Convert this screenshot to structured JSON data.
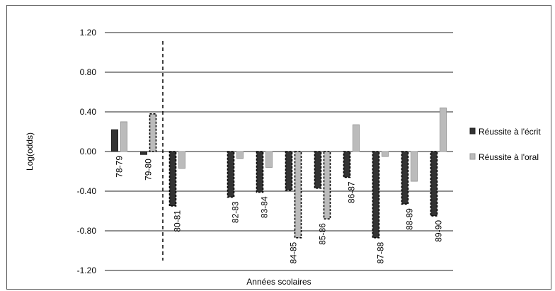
{
  "chart_data": {
    "type": "bar",
    "title": "",
    "xlabel": "Années scolaires",
    "ylabel": "Log(odds)",
    "ylim": [
      -1.2,
      1.2
    ],
    "yticks": [
      "1.20",
      "0.80",
      "0.40",
      "0.00",
      "-0.40",
      "-0.80",
      "-1.20"
    ],
    "grid": true,
    "legend_position": "right",
    "categories": [
      "78-79",
      "79-80",
      "80-81",
      "",
      "82-83",
      "83-84",
      "84-85",
      "85-86",
      "86-87",
      "87-88",
      "88-89",
      "89-90"
    ],
    "series": [
      {
        "name": "Réussite à l'écrit",
        "color": "#333333",
        "values": [
          0.22,
          -0.03,
          -0.55,
          null,
          -0.46,
          -0.41,
          -0.39,
          -0.37,
          -0.26,
          -0.87,
          -0.53,
          -0.65
        ],
        "dashed_outline": [
          false,
          false,
          true,
          false,
          true,
          true,
          true,
          true,
          true,
          true,
          true,
          true
        ]
      },
      {
        "name": "Réussite à l'oral",
        "color": "#bbbbbb",
        "values": [
          0.3,
          0.38,
          -0.17,
          null,
          -0.07,
          -0.16,
          -0.87,
          -0.68,
          0.27,
          -0.05,
          -0.3,
          0.44
        ],
        "dashed_outline": [
          false,
          true,
          false,
          false,
          false,
          false,
          true,
          true,
          false,
          false,
          false,
          false
        ]
      }
    ],
    "annotations": [
      {
        "type": "vertical-dashed-line",
        "between_categories": [
          "79-80",
          "80-81"
        ]
      }
    ]
  }
}
